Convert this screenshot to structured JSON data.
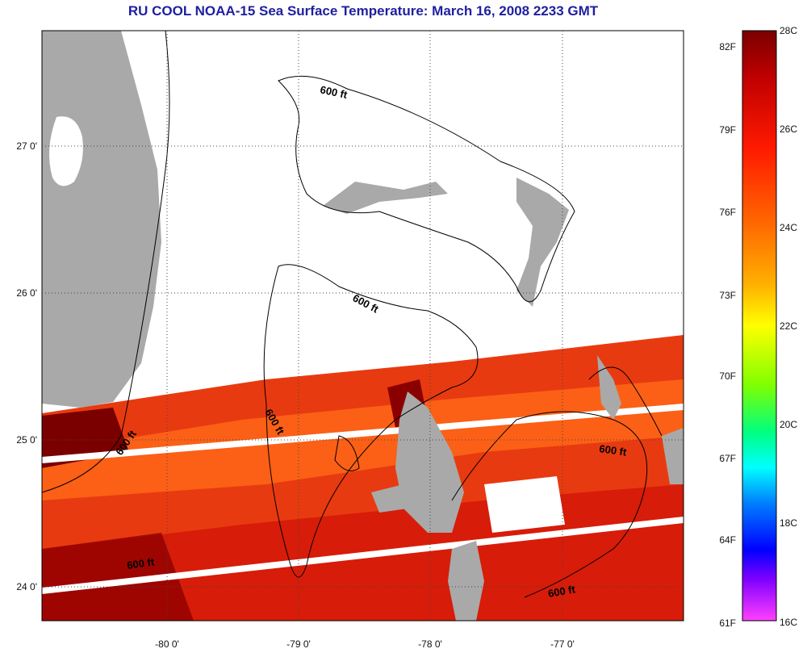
{
  "title": "RU COOL  NOAA-15  Sea Surface Temperature:  March 16, 2008 2233 GMT",
  "axes": {
    "lat_labels": [
      "27 0'",
      "26 0'",
      "25 0'",
      "24 0'"
    ],
    "lon_labels": [
      "-80 0'",
      "-79 0'",
      "-78 0'",
      "-77 0'"
    ]
  },
  "contour_labels": [
    "600 ft",
    "600 ft",
    "600 ft",
    "600 ft",
    "600 ft",
    "600 ft",
    "600 ft"
  ],
  "colorbar": {
    "fahrenheit": [
      "82F",
      "79F",
      "76F",
      "73F",
      "70F",
      "67F",
      "64F",
      "61F"
    ],
    "celsius": [
      "28C",
      "26C",
      "24C",
      "22C",
      "20C",
      "18C",
      "16C"
    ],
    "colors": [
      "#7a0000",
      "#c00000",
      "#ff1a00",
      "#ff6a00",
      "#ffb000",
      "#ffff00",
      "#80ff00",
      "#00ff80",
      "#00ffff",
      "#0080ff",
      "#0000ff",
      "#8000ff",
      "#ff40ff"
    ]
  },
  "colors": {
    "land": "#a9a9a9",
    "no_data": "#ffffff",
    "title": "#1f1fa0"
  }
}
